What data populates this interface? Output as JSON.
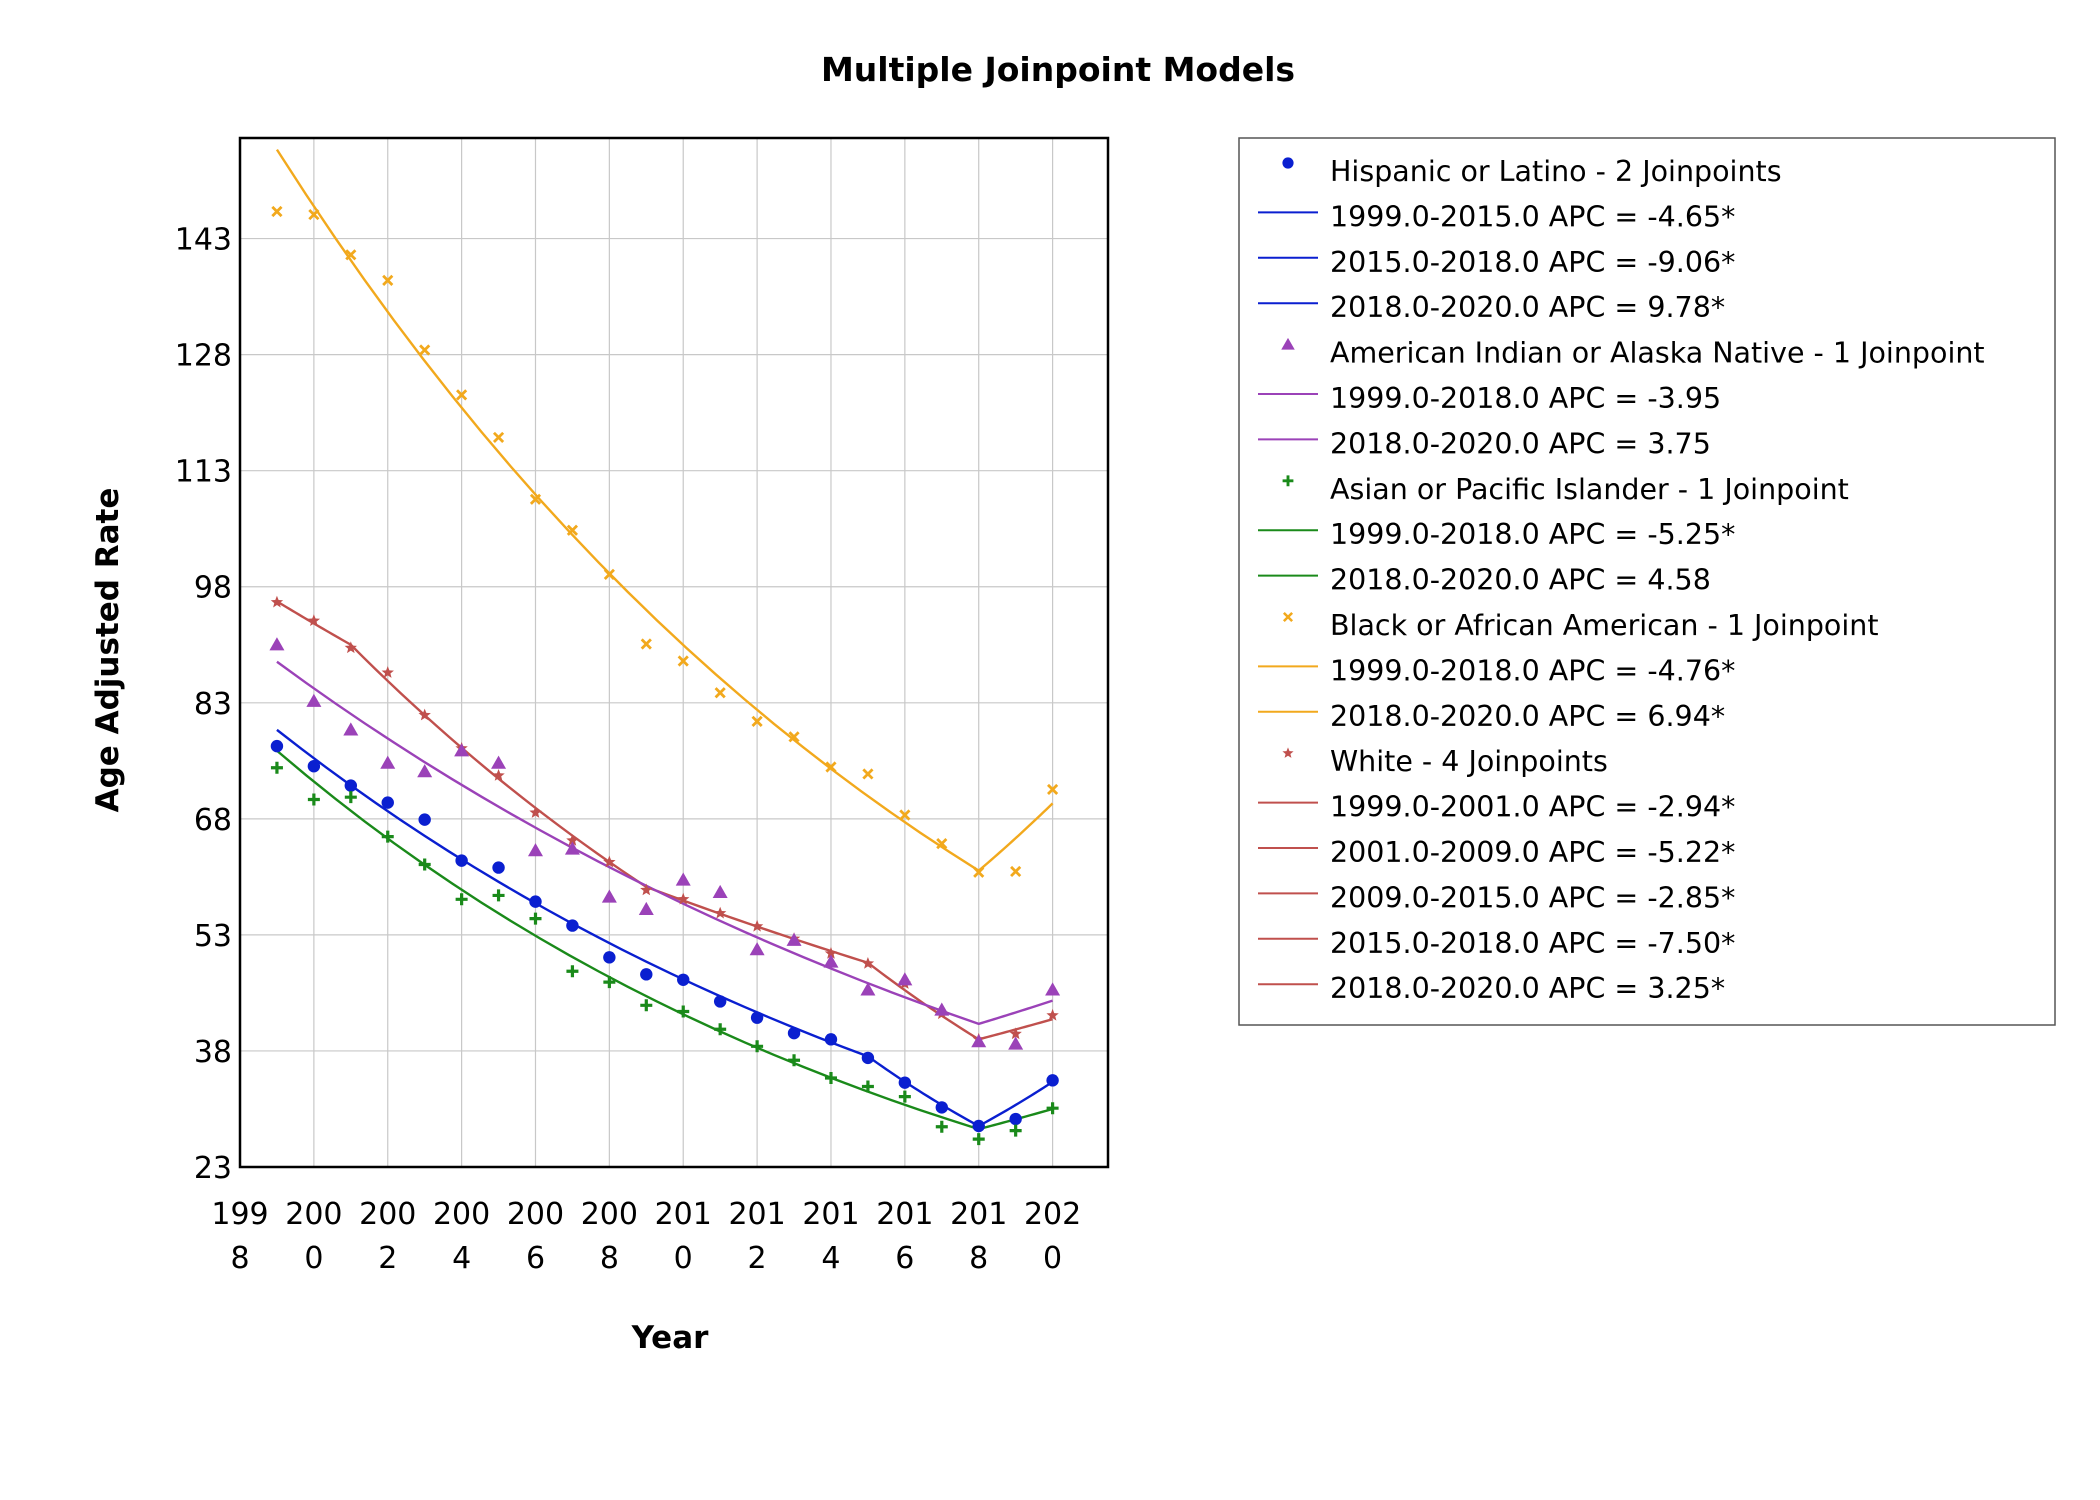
{
  "chart_data": {
    "type": "line",
    "title": "Multiple Joinpoint Models",
    "xlabel": "Year",
    "ylabel": "Age Adjusted Rate",
    "xlim": [
      1998,
      2021.5
    ],
    "ylim": [
      23,
      156
    ],
    "grid": true,
    "legend_position": "right",
    "xticks": [
      {
        "value": 1998,
        "line1": "199",
        "line2": "8"
      },
      {
        "value": 2000,
        "line1": "200",
        "line2": "0"
      },
      {
        "value": 2002,
        "line1": "200",
        "line2": "2"
      },
      {
        "value": 2004,
        "line1": "200",
        "line2": "4"
      },
      {
        "value": 2006,
        "line1": "200",
        "line2": "6"
      },
      {
        "value": 2008,
        "line1": "200",
        "line2": "8"
      },
      {
        "value": 2010,
        "line1": "201",
        "line2": "0"
      },
      {
        "value": 2012,
        "line1": "201",
        "line2": "2"
      },
      {
        "value": 2014,
        "line1": "201",
        "line2": "4"
      },
      {
        "value": 2016,
        "line1": "201",
        "line2": "6"
      },
      {
        "value": 2018,
        "line1": "201",
        "line2": "8"
      },
      {
        "value": 2020,
        "line1": "202",
        "line2": "0"
      }
    ],
    "yticks": [
      {
        "value": 23,
        "label": "23"
      },
      {
        "value": 38,
        "label": "38"
      },
      {
        "value": 53,
        "label": "53"
      },
      {
        "value": 68,
        "label": "68"
      },
      {
        "value": 83,
        "label": "83"
      },
      {
        "value": 98,
        "label": "98"
      },
      {
        "value": 113,
        "label": "113"
      },
      {
        "value": 128,
        "label": "128"
      },
      {
        "value": 143,
        "label": "143"
      }
    ],
    "x": [
      1999,
      2000,
      2001,
      2002,
      2003,
      2004,
      2005,
      2006,
      2007,
      2008,
      2009,
      2010,
      2011,
      2012,
      2013,
      2014,
      2015,
      2016,
      2017,
      2018,
      2019,
      2020
    ],
    "series": [
      {
        "id": "white",
        "name": "White",
        "color": "#c0504d",
        "marker": "star",
        "values": [
          96,
          93.6,
          90.1,
          86.9,
          81.4,
          77.1,
          73.6,
          68.8,
          65.2,
          62.4,
          58.8,
          57.6,
          55.8,
          54.1,
          52.5,
          50.6,
          49.3,
          46.7,
          42.8,
          39.5,
          40.2,
          42.6
        ],
        "fit": [
          [
            1999,
            96.1
          ],
          [
            2001,
            90.5
          ],
          [
            2009,
            59.2
          ],
          [
            2015,
            49.4
          ],
          [
            2018,
            39.5
          ],
          [
            2020,
            42.1
          ]
        ]
      },
      {
        "id": "aian",
        "name": "American Indian or Alaska Native",
        "color": "#9b42b8",
        "marker": "triangle",
        "values": [
          90.5,
          83.2,
          79.5,
          75.2,
          74.1,
          76.8,
          75.2,
          63.9,
          64.1,
          57.9,
          56.3,
          60.1,
          58.5,
          51.1,
          52.3,
          49.5,
          45.9,
          47.2,
          43.3,
          39.2,
          38.9,
          45.9
        ],
        "fit": [
          [
            1999,
            88.3
          ],
          [
            2018,
            41.5
          ],
          [
            2020,
            44.5
          ]
        ]
      },
      {
        "id": "hispanic",
        "name": "Hispanic or Latino",
        "color": "#0a1fd0",
        "marker": "circle",
        "values": [
          77.4,
          74.8,
          72.3,
          70.1,
          67.9,
          62.6,
          61.7,
          57.3,
          54.2,
          50.1,
          47.9,
          47.2,
          44.4,
          42.3,
          40.3,
          39.5,
          37.1,
          33.9,
          30.7,
          28.3,
          29.2,
          34.2
        ],
        "fit": [
          [
            1999,
            79.5
          ],
          [
            2015,
            37.3
          ],
          [
            2018,
            28.3
          ],
          [
            2020,
            34.0
          ]
        ]
      },
      {
        "id": "api",
        "name": "Asian or Pacific Islander",
        "color": "#1a8a1a",
        "marker": "plus",
        "values": [
          74.6,
          70.5,
          70.8,
          65.7,
          62.1,
          57.6,
          58.1,
          55.1,
          48.3,
          46.9,
          43.9,
          43.1,
          40.8,
          38.6,
          36.8,
          34.5,
          33.4,
          32.1,
          28.2,
          26.6,
          27.7,
          30.6
        ],
        "fit": [
          [
            1999,
            76.8
          ],
          [
            2018,
            27.9
          ],
          [
            2020,
            30.5
          ]
        ]
      },
      {
        "id": "black",
        "name": "Black or African American",
        "color": "#f2a91d",
        "marker": "x",
        "values": [
          146.5,
          146.1,
          140.9,
          137.6,
          128.6,
          122.8,
          117.3,
          109.3,
          105.3,
          99.6,
          90.6,
          88.4,
          84.3,
          80.6,
          78.6,
          74.7,
          73.8,
          68.5,
          64.8,
          61.1,
          61.2,
          71.8
        ],
        "fit": [
          [
            1999,
            154.5
          ],
          [
            2018,
            61.3
          ],
          [
            2020,
            70.0
          ]
        ]
      }
    ]
  },
  "legend": [
    {
      "type": "marker",
      "series": "hispanic",
      "text": "Hispanic or Latino - 2 Joinpoints"
    },
    {
      "type": "line",
      "color": "#0a1fd0",
      "text": "1999.0-2015.0 APC  =  -4.65*"
    },
    {
      "type": "line",
      "color": "#0a1fd0",
      "text": "2015.0-2018.0 APC  =  -9.06*"
    },
    {
      "type": "line",
      "color": "#0a1fd0",
      "text": "2018.0-2020.0 APC  =  9.78*"
    },
    {
      "type": "marker",
      "series": "aian",
      "text": "American Indian or Alaska Native - 1 Joinpoint"
    },
    {
      "type": "line",
      "color": "#9b42b8",
      "text": "1999.0-2018.0 APC  =  -3.95"
    },
    {
      "type": "line",
      "color": "#9b42b8",
      "text": "2018.0-2020.0 APC  =  3.75"
    },
    {
      "type": "marker",
      "series": "api",
      "text": "Asian or Pacific Islander - 1 Joinpoint"
    },
    {
      "type": "line",
      "color": "#1a8a1a",
      "text": "1999.0-2018.0 APC  =  -5.25*"
    },
    {
      "type": "line",
      "color": "#1a8a1a",
      "text": "2018.0-2020.0 APC  =  4.58"
    },
    {
      "type": "marker",
      "series": "black",
      "text": "Black or African American - 1 Joinpoint"
    },
    {
      "type": "line",
      "color": "#f2a91d",
      "text": "1999.0-2018.0 APC  =  -4.76*"
    },
    {
      "type": "line",
      "color": "#f2a91d",
      "text": "2018.0-2020.0 APC  =  6.94*"
    },
    {
      "type": "marker",
      "series": "white",
      "text": "White - 4 Joinpoints"
    },
    {
      "type": "line",
      "color": "#c0504d",
      "text": "1999.0-2001.0 APC  =  -2.94*"
    },
    {
      "type": "line",
      "color": "#c0504d",
      "text": "2001.0-2009.0 APC  =  -5.22*"
    },
    {
      "type": "line",
      "color": "#c0504d",
      "text": "2009.0-2015.0 APC  =  -2.85*"
    },
    {
      "type": "line",
      "color": "#c0504d",
      "text": "2015.0-2018.0 APC  =  -7.50*"
    },
    {
      "type": "line",
      "color": "#c0504d",
      "text": "2018.0-2020.0 APC  =  3.25*"
    }
  ]
}
